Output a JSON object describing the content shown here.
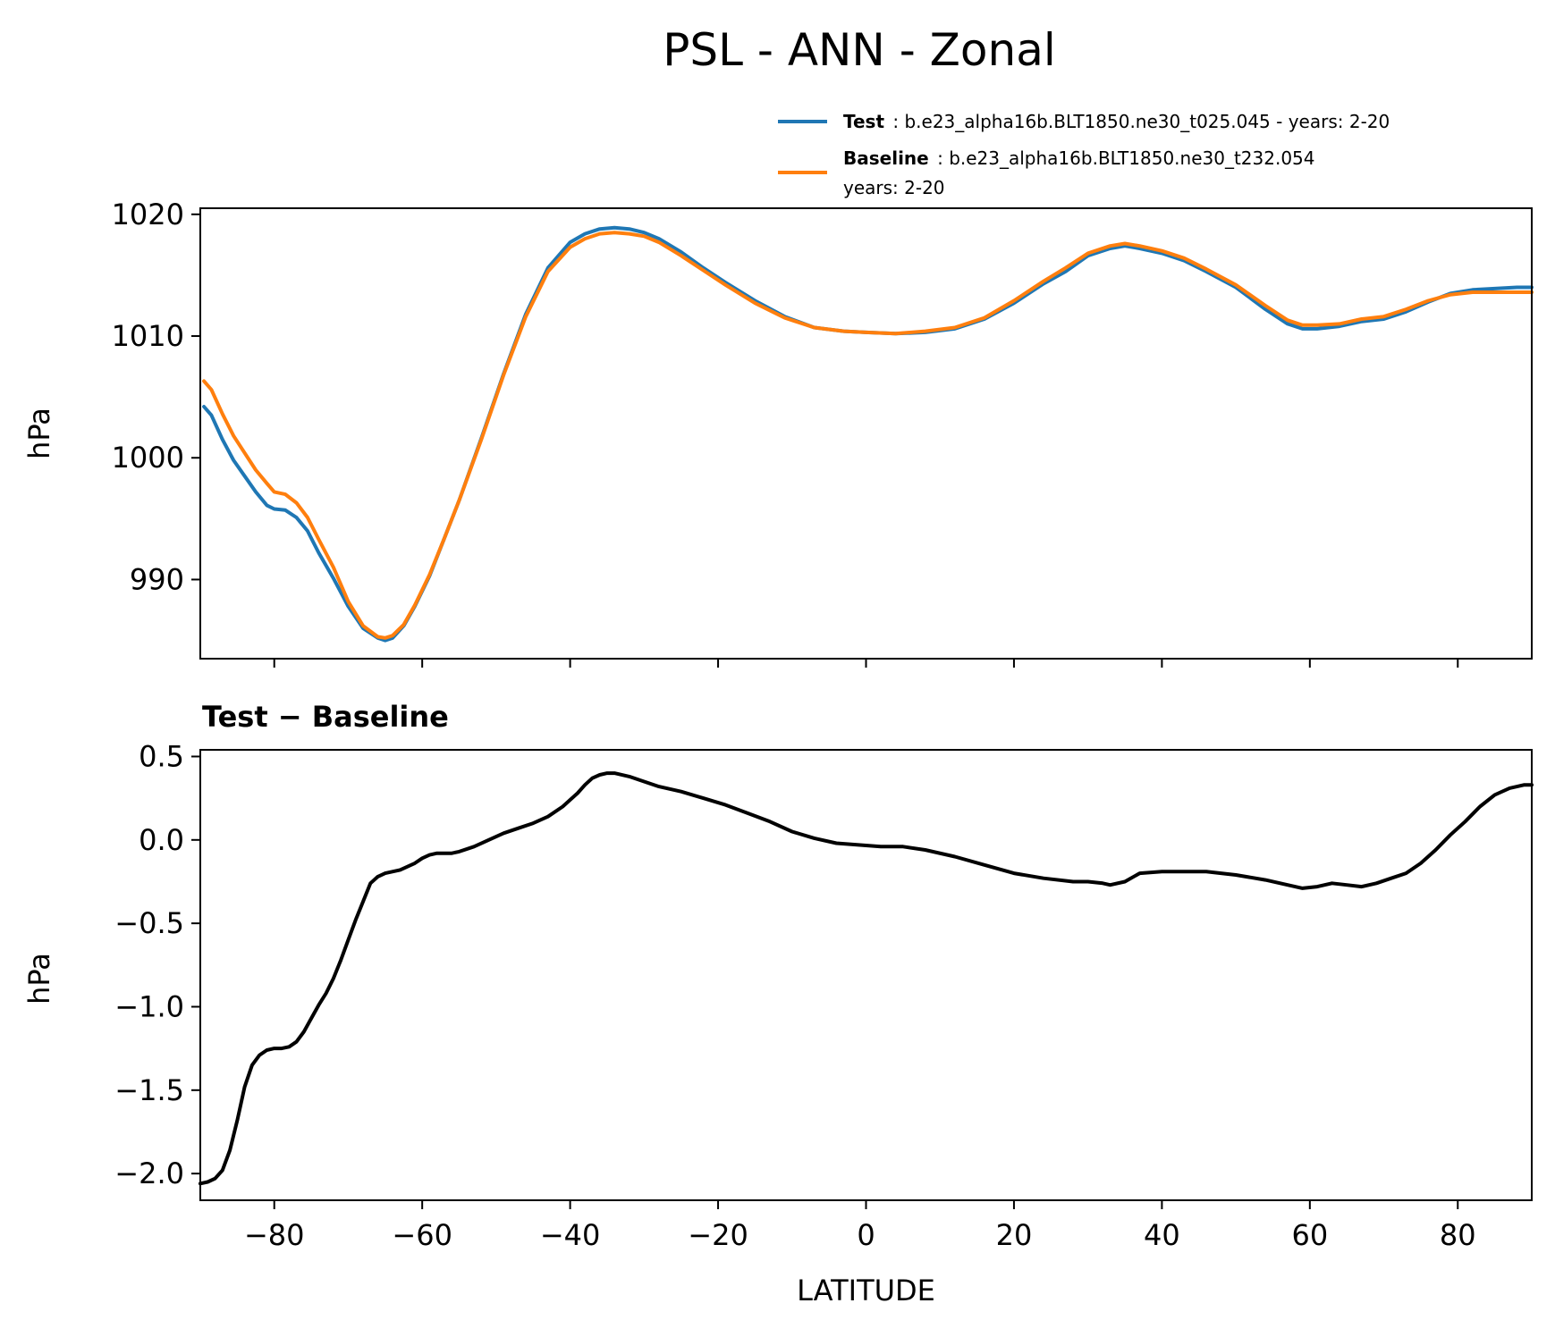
{
  "figure": {
    "title": "PSL - ANN - Zonal"
  },
  "legend": {
    "test": {
      "bold": "Test",
      "rest": ": b.e23_alpha16b.BLT1850.ne30_t025.045 - years: 2-20"
    },
    "baseline": {
      "bold": "Baseline",
      "rest": ": b.e23_alpha16b.BLT1850.ne30_t232.054",
      "line2": "years: 2-20"
    }
  },
  "colors": {
    "test": "#1f77b4",
    "baseline": "#ff7f0e",
    "diff": "#000000"
  },
  "chart_data": [
    {
      "type": "line",
      "ylabel": "hPa",
      "xlim": [
        -90,
        90
      ],
      "ylim": [
        983.5,
        1020.5
      ],
      "yticks": [
        990,
        1000,
        1010,
        1020
      ],
      "ytick_labels": [
        "990",
        "1000",
        "1010",
        "1020"
      ],
      "xticks": [
        -80,
        -60,
        -40,
        -20,
        0,
        20,
        40,
        60,
        80
      ],
      "legend_position": "above, top-right",
      "grid": false,
      "series": [
        {
          "name": "Test",
          "x": [
            -89.5,
            -88.5,
            -87,
            -85.5,
            -84,
            -82.5,
            -81,
            -80,
            -78.5,
            -77,
            -75.5,
            -74,
            -72,
            -70,
            -68,
            -66,
            -65,
            -64,
            -62.5,
            -61,
            -59,
            -57,
            -55,
            -52,
            -49,
            -46,
            -43,
            -40,
            -38,
            -36,
            -34,
            -32,
            -30,
            -28,
            -25,
            -22,
            -19,
            -15,
            -11,
            -7,
            -3,
            0,
            4,
            8,
            12,
            16,
            20,
            24,
            27,
            30,
            33,
            35,
            37,
            40,
            43,
            46,
            50,
            54,
            57,
            59,
            61,
            64,
            67,
            70,
            73,
            76,
            79,
            82,
            85,
            88,
            90
          ],
          "values": [
            1004.2,
            1003.5,
            1001.5,
            999.8,
            998.5,
            997.2,
            996.1,
            995.8,
            995.7,
            995.1,
            994.0,
            992.2,
            990.1,
            987.8,
            986.0,
            985.2,
            985.0,
            985.2,
            986.2,
            987.8,
            990.3,
            993.4,
            996.5,
            1001.6,
            1006.9,
            1011.8,
            1015.6,
            1017.7,
            1018.4,
            1018.8,
            1018.9,
            1018.8,
            1018.5,
            1018.0,
            1016.9,
            1015.6,
            1014.4,
            1012.9,
            1011.6,
            1010.7,
            1010.4,
            1010.3,
            1010.2,
            1010.3,
            1010.6,
            1011.4,
            1012.7,
            1014.3,
            1015.3,
            1016.6,
            1017.2,
            1017.4,
            1017.2,
            1016.8,
            1016.2,
            1015.3,
            1014.0,
            1012.2,
            1011.0,
            1010.6,
            1010.6,
            1010.8,
            1011.2,
            1011.4,
            1012.0,
            1012.8,
            1013.5,
            1013.8,
            1013.9,
            1014.0,
            1014.0
          ]
        },
        {
          "name": "Baseline",
          "x": [
            -89.5,
            -88.5,
            -87,
            -85.5,
            -84,
            -82.5,
            -81,
            -80,
            -78.5,
            -77,
            -75.5,
            -74,
            -72,
            -70,
            -68,
            -66,
            -65,
            -64,
            -62.5,
            -61,
            -59,
            -57,
            -55,
            -52,
            -49,
            -46,
            -43,
            -40,
            -38,
            -36,
            -34,
            -32,
            -30,
            -28,
            -25,
            -22,
            -19,
            -15,
            -11,
            -7,
            -3,
            0,
            4,
            8,
            12,
            16,
            20,
            24,
            27,
            30,
            33,
            35,
            37,
            40,
            43,
            46,
            50,
            54,
            57,
            59,
            61,
            64,
            67,
            70,
            73,
            76,
            79,
            82,
            85,
            88,
            90
          ],
          "values": [
            1006.3,
            1005.6,
            1003.6,
            1001.8,
            1000.4,
            999.0,
            997.9,
            997.2,
            997.0,
            996.3,
            995.1,
            993.3,
            991.0,
            988.2,
            986.2,
            985.3,
            985.2,
            985.4,
            986.3,
            987.9,
            990.4,
            993.4,
            996.5,
            1001.5,
            1006.8,
            1011.6,
            1015.3,
            1017.3,
            1018.0,
            1018.4,
            1018.5,
            1018.4,
            1018.2,
            1017.7,
            1016.6,
            1015.4,
            1014.2,
            1012.7,
            1011.5,
            1010.7,
            1010.4,
            1010.3,
            1010.2,
            1010.4,
            1010.7,
            1011.5,
            1012.9,
            1014.5,
            1015.6,
            1016.8,
            1017.4,
            1017.6,
            1017.4,
            1017.0,
            1016.4,
            1015.5,
            1014.2,
            1012.5,
            1011.3,
            1010.9,
            1010.9,
            1011.0,
            1011.4,
            1011.6,
            1012.2,
            1012.9,
            1013.4,
            1013.6,
            1013.6,
            1013.6,
            1013.6
          ]
        }
      ]
    },
    {
      "type": "line",
      "title": "Test − Baseline",
      "ylabel": "hPa",
      "xlabel": "LATITUDE",
      "xlim": [
        -90,
        90
      ],
      "ylim": [
        -2.16,
        0.54
      ],
      "yticks": [
        -2.0,
        -1.5,
        -1.0,
        -0.5,
        0.0,
        0.5
      ],
      "ytick_labels": [
        "−2.0",
        "−1.5",
        "−1.0",
        "−0.5",
        "0.0",
        "0.5"
      ],
      "xticks": [
        -80,
        -60,
        -40,
        -20,
        0,
        20,
        40,
        60,
        80
      ],
      "xtick_labels": [
        "−80",
        "−60",
        "−40",
        "−20",
        "0",
        "20",
        "40",
        "60",
        "80"
      ],
      "grid": false,
      "series": [
        {
          "x": [
            -90,
            -89,
            -88,
            -87,
            -86,
            -85,
            -84,
            -83,
            -82,
            -81,
            -80,
            -79,
            -78,
            -77,
            -76,
            -75,
            -74,
            -73,
            -72,
            -71,
            -70,
            -69,
            -68,
            -67,
            -66,
            -65,
            -63,
            -61,
            -60,
            -59,
            -58,
            -56,
            -55,
            -53,
            -51,
            -49,
            -47,
            -45,
            -43,
            -41,
            -39,
            -38,
            -37,
            -36,
            -35,
            -34,
            -32,
            -30,
            -28,
            -25,
            -22,
            -19,
            -16,
            -13,
            -10,
            -7,
            -4,
            -1,
            2,
            5,
            8,
            12,
            16,
            20,
            24,
            28,
            30,
            32,
            33,
            35,
            37,
            40,
            43,
            46,
            50,
            54,
            57,
            59,
            61,
            63,
            65,
            67,
            69,
            71,
            73,
            75,
            77,
            79,
            81,
            83,
            85,
            87,
            88,
            89,
            90
          ],
          "values": [
            -2.06,
            -2.05,
            -2.03,
            -1.98,
            -1.86,
            -1.68,
            -1.48,
            -1.35,
            -1.29,
            -1.26,
            -1.25,
            -1.25,
            -1.24,
            -1.21,
            -1.15,
            -1.07,
            -0.99,
            -0.92,
            -0.83,
            -0.72,
            -0.6,
            -0.48,
            -0.37,
            -0.26,
            -0.22,
            -0.2,
            -0.18,
            -0.14,
            -0.11,
            -0.09,
            -0.08,
            -0.08,
            -0.07,
            -0.04,
            0.0,
            0.04,
            0.07,
            0.1,
            0.14,
            0.2,
            0.28,
            0.33,
            0.37,
            0.39,
            0.4,
            0.4,
            0.38,
            0.35,
            0.32,
            0.29,
            0.25,
            0.21,
            0.16,
            0.11,
            0.05,
            0.01,
            -0.02,
            -0.03,
            -0.04,
            -0.04,
            -0.06,
            -0.1,
            -0.15,
            -0.2,
            -0.23,
            -0.25,
            -0.25,
            -0.26,
            -0.27,
            -0.25,
            -0.2,
            -0.19,
            -0.19,
            -0.19,
            -0.21,
            -0.24,
            -0.27,
            -0.29,
            -0.28,
            -0.26,
            -0.27,
            -0.28,
            -0.26,
            -0.23,
            -0.2,
            -0.14,
            -0.06,
            0.03,
            0.11,
            0.2,
            0.27,
            0.31,
            0.32,
            0.33,
            0.33
          ]
        }
      ]
    }
  ]
}
